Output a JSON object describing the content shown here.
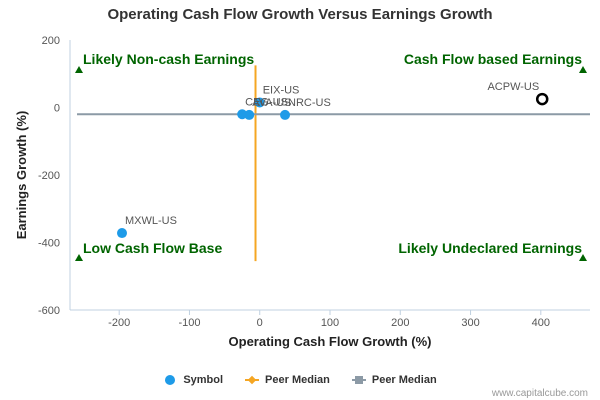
{
  "chart_data": {
    "type": "scatter",
    "title": "Operating Cash Flow Growth Versus Earnings Growth",
    "xlabel": "Operating Cash Flow Growth (%)",
    "ylabel": "Earnings Growth (%)",
    "xlim": [
      -270,
      470
    ],
    "ylim": [
      -600,
      200
    ],
    "x_ticks": [
      -200,
      -100,
      0,
      100,
      200,
      300,
      400
    ],
    "y_ticks": [
      200,
      0,
      -200,
      -400,
      -600
    ],
    "points": [
      {
        "label": "EIX-US",
        "x": 0,
        "y": 15,
        "highlight": false
      },
      {
        "label": "CEG-US",
        "x": -25,
        "y": -20,
        "highlight": false
      },
      {
        "label": "AVA-US",
        "x": -15,
        "y": -22,
        "highlight": false
      },
      {
        "label": "NRC-US",
        "x": 36,
        "y": -22,
        "highlight": false
      },
      {
        "label": "MXWL-US",
        "x": -196,
        "y": -372,
        "highlight": false
      },
      {
        "label": "ACPW-US",
        "x": 402,
        "y": 25,
        "highlight": true
      }
    ],
    "peer_median": {
      "x": -6,
      "y": -20,
      "x_line_range": [
        -455,
        125
      ],
      "y_line_range": [
        -260,
        470
      ]
    },
    "quadrant_labels": {
      "top_left": "Likely Non-cash Earnings",
      "top_right": "Cash Flow based Earnings",
      "bottom_left": "Low Cash Flow Base",
      "bottom_right": "Likely Undeclared Earnings"
    },
    "legend": [
      {
        "name": "Symbol",
        "marker": "circle",
        "color": "#1E9BE8"
      },
      {
        "name": "Peer Median",
        "marker": "diamond-line",
        "color": "#F5A623"
      },
      {
        "name": "Peer Median",
        "marker": "square-line",
        "color": "#8C9AA6"
      }
    ],
    "legend_position": "bottom",
    "grid": false,
    "colors": {
      "symbol": "#1E9BE8",
      "highlight_stroke": "#000000",
      "peer_vertical": "#F5A623",
      "peer_horizontal": "#8C9AA6",
      "quadrant_text": "#006400",
      "triangle": "#006400"
    }
  },
  "credit": "www.capitalcube.com"
}
